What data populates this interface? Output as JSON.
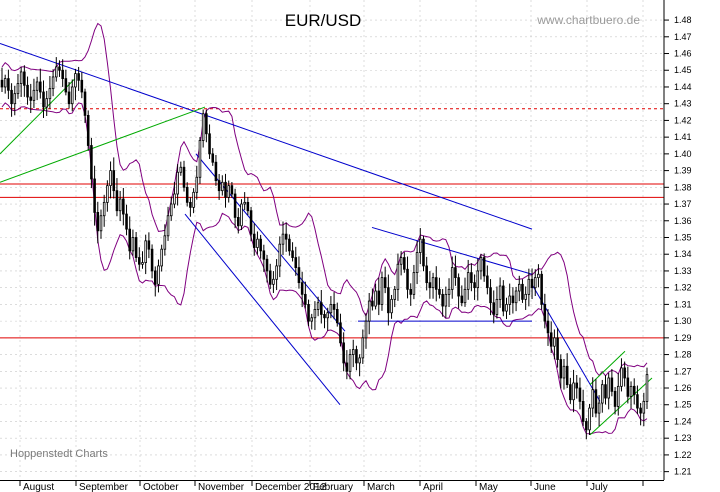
{
  "chart_data": {
    "type": "candlestick",
    "title": "EUR/USD",
    "watermark": "www.chartbuero.de",
    "credit": "Hoppenstedt Charts",
    "xlabel": "",
    "ylabel": "",
    "ylim": [
      1.205,
      1.492
    ],
    "grid": true,
    "y_ticks": [
      "1.21",
      "1.22",
      "1.23",
      "1.24",
      "1.25",
      "1.26",
      "1.27",
      "1.28",
      "1.29",
      "1.30",
      "1.31",
      "1.32",
      "1.33",
      "1.34",
      "1.35",
      "1.36",
      "1.37",
      "1.38",
      "1.39",
      "1.40",
      "1.41",
      "1.42",
      "1.43",
      "1.44",
      "1.45",
      "1.46",
      "1.47",
      "1.48"
    ],
    "x_ticks": [
      "August",
      "September",
      "October",
      "November",
      "December 2012",
      "February",
      "March",
      "April",
      "May",
      "June",
      "July"
    ],
    "closes": [
      1.44,
      1.445,
      1.438,
      1.43,
      1.436,
      1.442,
      1.449,
      1.441,
      1.434,
      1.432,
      1.438,
      1.443,
      1.437,
      1.428,
      1.433,
      1.439,
      1.446,
      1.452,
      1.45,
      1.445,
      1.437,
      1.43,
      1.44,
      1.448,
      1.444,
      1.437,
      1.423,
      1.405,
      1.385,
      1.365,
      1.354,
      1.363,
      1.371,
      1.381,
      1.39,
      1.378,
      1.366,
      1.373,
      1.364,
      1.355,
      1.342,
      1.35,
      1.338,
      1.334,
      1.335,
      1.348,
      1.343,
      1.33,
      1.322,
      1.333,
      1.343,
      1.351,
      1.363,
      1.37,
      1.376,
      1.389,
      1.392,
      1.38,
      1.371,
      1.368,
      1.377,
      1.386,
      1.408,
      1.424,
      1.412,
      1.4,
      1.395,
      1.384,
      1.378,
      1.383,
      1.374,
      1.381,
      1.376,
      1.362,
      1.357,
      1.37,
      1.371,
      1.366,
      1.352,
      1.344,
      1.349,
      1.342,
      1.337,
      1.33,
      1.322,
      1.325,
      1.333,
      1.346,
      1.352,
      1.349,
      1.342,
      1.338,
      1.332,
      1.323,
      1.316,
      1.31,
      1.3,
      1.302,
      1.307,
      1.311,
      1.304,
      1.302,
      1.305,
      1.31,
      1.307,
      1.299,
      1.287,
      1.275,
      1.27,
      1.28,
      1.283,
      1.275,
      1.278,
      1.29,
      1.3,
      1.312,
      1.309,
      1.318,
      1.31,
      1.326,
      1.32,
      1.305,
      1.313,
      1.319,
      1.334,
      1.338,
      1.331,
      1.319,
      1.316,
      1.329,
      1.341,
      1.349,
      1.333,
      1.323,
      1.32,
      1.326,
      1.319,
      1.316,
      1.309,
      1.316,
      1.319,
      1.332,
      1.326,
      1.315,
      1.311,
      1.319,
      1.329,
      1.323,
      1.32,
      1.33,
      1.338,
      1.327,
      1.32,
      1.311,
      1.304,
      1.313,
      1.321,
      1.306,
      1.31,
      1.315,
      1.311,
      1.318,
      1.322,
      1.313,
      1.316,
      1.325,
      1.32,
      1.326,
      1.328,
      1.31,
      1.3,
      1.293,
      1.285,
      1.29,
      1.277,
      1.266,
      1.273,
      1.262,
      1.253,
      1.263,
      1.26,
      1.252,
      1.24,
      1.235,
      1.248,
      1.259,
      1.245,
      1.251,
      1.262,
      1.254,
      1.266,
      1.258,
      1.249,
      1.261,
      1.272,
      1.266,
      1.255,
      1.261,
      1.256,
      1.248,
      1.245,
      1.252,
      1.268
    ]
  }
}
